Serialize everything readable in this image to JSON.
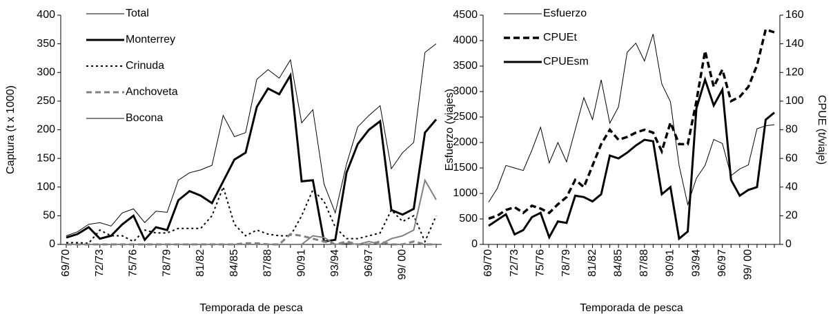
{
  "chart_data": [
    {
      "type": "line",
      "y_label": "Captura (t x 1000)",
      "x_label": "Temporada de pesca",
      "categories": [
        "69/70",
        null,
        null,
        "72/73",
        null,
        null,
        "75/76",
        null,
        null,
        "78/79",
        null,
        null,
        "81/82",
        null,
        null,
        "84/85",
        null,
        null,
        "87/88",
        null,
        null,
        "90/91",
        null,
        null,
        "93/94",
        null,
        null,
        "96/97",
        null,
        null,
        "99/ 00",
        null,
        null,
        null
      ],
      "ylim": [
        0,
        400
      ],
      "yticks": [
        0,
        50,
        100,
        150,
        200,
        250,
        300,
        350,
        400
      ],
      "series": [
        {
          "name": "Total",
          "color": "#000000",
          "style": "thin",
          "values": [
            15,
            22,
            35,
            38,
            32,
            55,
            62,
            38,
            58,
            56,
            112,
            125,
            130,
            138,
            225,
            188,
            195,
            288,
            305,
            290,
            322,
            212,
            235,
            105,
            55,
            140,
            205,
            225,
            242,
            132,
            160,
            178,
            335,
            350
          ]
        },
        {
          "name": "Monterrey",
          "color": "#000000",
          "style": "thick",
          "values": [
            12,
            18,
            30,
            10,
            15,
            35,
            50,
            8,
            30,
            25,
            77,
            93,
            85,
            72,
            110,
            148,
            160,
            240,
            272,
            262,
            295,
            110,
            112,
            5,
            8,
            125,
            175,
            200,
            215,
            60,
            52,
            62,
            195,
            218
          ]
        },
        {
          "name": "Crinuda",
          "color": "#000000",
          "style": "dotted",
          "values": [
            3,
            3,
            2,
            25,
            15,
            15,
            5,
            25,
            20,
            20,
            28,
            28,
            28,
            50,
            100,
            35,
            15,
            25,
            18,
            15,
            15,
            50,
            95,
            75,
            30,
            10,
            10,
            15,
            20,
            60,
            40,
            50,
            5,
            50
          ]
        },
        {
          "name": "Anchoveta",
          "color": "#808080",
          "style": "dashed",
          "values": [
            0,
            0,
            0,
            0,
            0,
            0,
            0,
            0,
            0,
            0,
            0,
            0,
            0,
            0,
            0,
            0,
            2,
            2,
            0,
            0,
            18,
            15,
            10,
            5,
            0,
            5,
            0,
            0,
            5,
            0,
            0,
            5,
            0,
            0
          ]
        },
        {
          "name": "Bocona",
          "color": "#808080",
          "style": "gray",
          "values": [
            0,
            0,
            0,
            0,
            0,
            0,
            0,
            0,
            0,
            0,
            0,
            0,
            0,
            0,
            0,
            0,
            0,
            0,
            0,
            0,
            0,
            0,
            15,
            12,
            0,
            2,
            0,
            5,
            0,
            10,
            15,
            25,
            112,
            78
          ]
        }
      ]
    },
    {
      "type": "line",
      "y_label": "Esfuerzo (viajes)",
      "y2_label": "CPUE (t/viaje)",
      "x_label": "Temporada de pesca",
      "categories": [
        "69/70",
        null,
        null,
        "72/73",
        null,
        null,
        "75/76",
        null,
        null,
        "78/79",
        null,
        null,
        "81/82",
        null,
        null,
        "84/85",
        null,
        null,
        "87/88",
        null,
        null,
        "90/91",
        null,
        null,
        "93/94",
        null,
        null,
        "96/97",
        null,
        null,
        "99/ 00",
        null,
        null,
        null
      ],
      "ylim": [
        0,
        4500
      ],
      "yticks": [
        0,
        500,
        1000,
        1500,
        2000,
        2500,
        3000,
        3500,
        4000,
        4500
      ],
      "y2lim": [
        0,
        160
      ],
      "y2ticks": [
        0,
        20,
        40,
        60,
        80,
        100,
        120,
        140,
        160
      ],
      "series": [
        {
          "name": "Esfuerzo",
          "color": "#000000",
          "style": "thin",
          "values": [
            830,
            1100,
            1550,
            1500,
            1450,
            1850,
            2300,
            1600,
            2000,
            1620,
            2250,
            2880,
            2450,
            3230,
            2380,
            2700,
            3770,
            3950,
            3600,
            4130,
            3150,
            2800,
            1550,
            780,
            1300,
            1550,
            2060,
            1980,
            1350,
            1480,
            1560,
            2270,
            2330,
            2350
          ]
        },
        {
          "name": "CPUEt",
          "color": "#000000",
          "style": "bigdash",
          "axis": "y2",
          "values": [
            18,
            20,
            24,
            26,
            22,
            27,
            25,
            22,
            28,
            33,
            45,
            40,
            55,
            70,
            80,
            73,
            75,
            78,
            80,
            78,
            65,
            85,
            70,
            70,
            100,
            135,
            110,
            122,
            100,
            103,
            110,
            125,
            150,
            148
          ]
        },
        {
          "name": "CPUEsm",
          "color": "#000000",
          "style": "thick",
          "axis": "y2",
          "values": [
            13,
            17,
            21,
            7,
            10,
            19,
            22,
            5,
            16,
            15,
            34,
            33,
            30,
            35,
            62,
            60,
            64,
            69,
            73,
            72,
            35,
            40,
            4,
            9,
            95,
            115,
            97,
            108,
            45,
            34,
            38,
            40,
            87,
            92
          ]
        }
      ]
    }
  ]
}
